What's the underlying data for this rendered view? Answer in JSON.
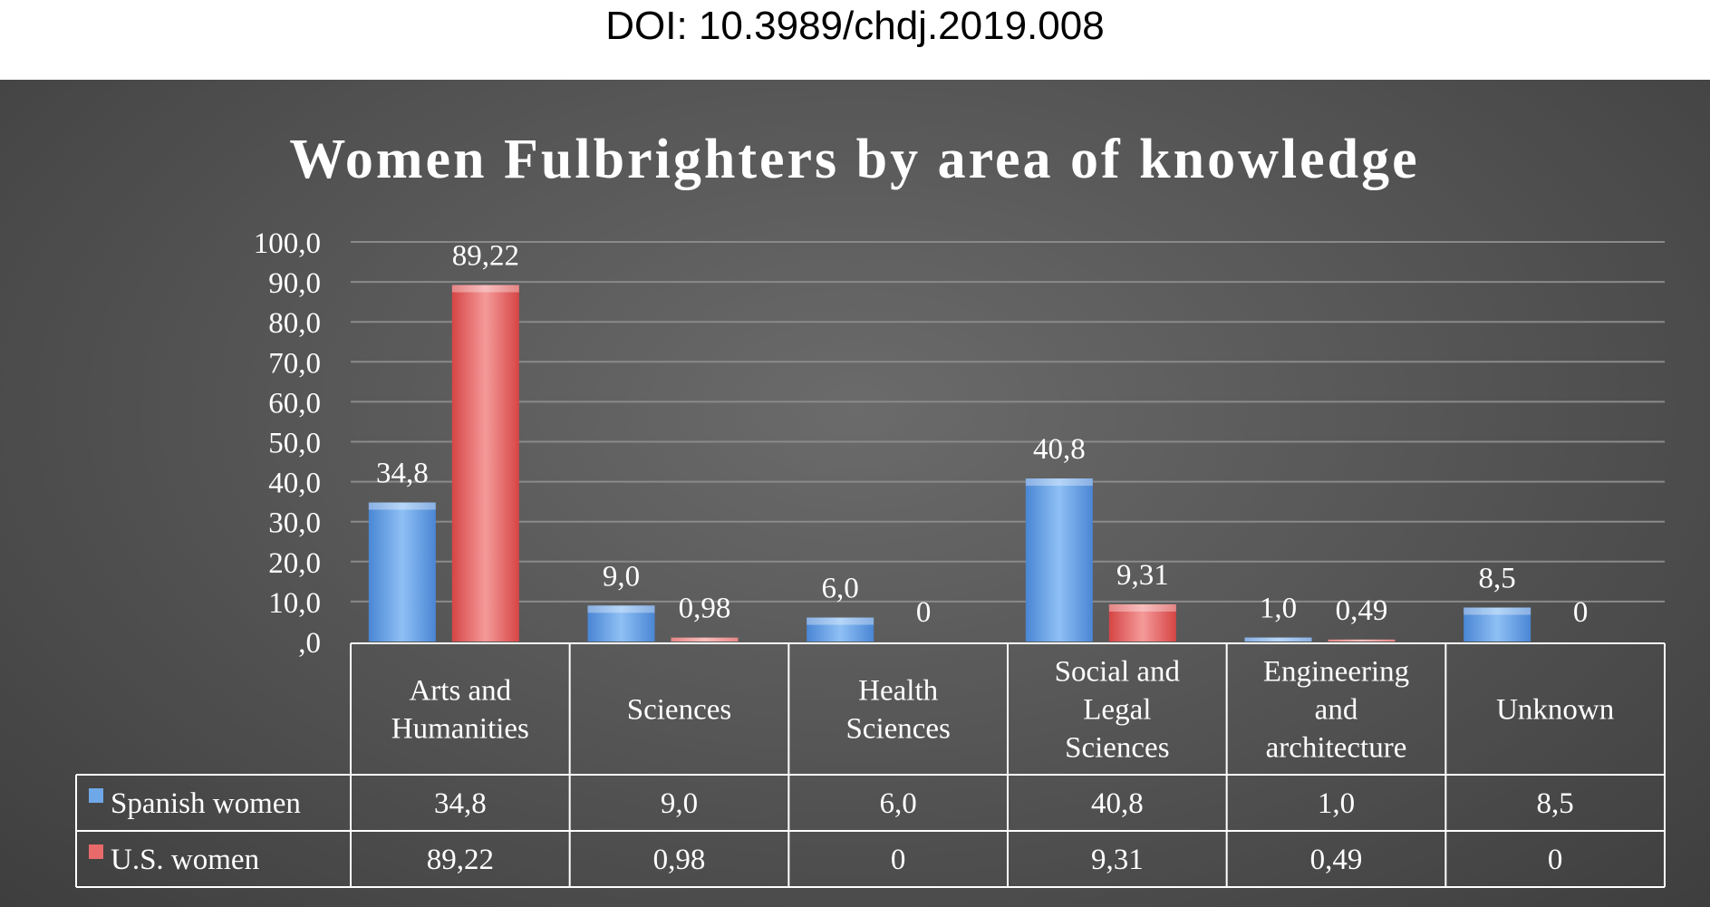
{
  "doi": "DOI: 10.3989/chdj.2019.008",
  "colors": {
    "spanish": "#6fa8e8",
    "us": "#e86a6a",
    "grid": "#8a8a8a",
    "table_line": "#ffffff"
  },
  "chart_data": {
    "type": "bar",
    "title": "Women Fulbrighters by area of knowledge",
    "categories": [
      [
        "Arts and",
        "Humanities"
      ],
      [
        "Sciences"
      ],
      [
        "Health",
        "Sciences"
      ],
      [
        "Social and",
        "Legal",
        "Sciences"
      ],
      [
        "Engineering",
        "and",
        "architecture"
      ],
      [
        "Unknown"
      ]
    ],
    "series": [
      {
        "name": "Spanish women",
        "values": [
          34.8,
          9.0,
          6.0,
          40.8,
          1.0,
          8.5
        ],
        "labels": [
          "34,8",
          "9,0",
          "6,0",
          "40,8",
          "1,0",
          "8,5"
        ]
      },
      {
        "name": "U.S. women",
        "values": [
          89.22,
          0.98,
          0,
          9.31,
          0.49,
          0
        ],
        "labels": [
          "89,22",
          "0,98",
          "0",
          "9,31",
          "0,49",
          "0"
        ]
      }
    ],
    "yticks": [
      ",0",
      "10,0",
      "20,0",
      "30,0",
      "40,0",
      "50,0",
      "60,0",
      "70,0",
      "80,0",
      "90,0",
      "100,0"
    ],
    "ylim": [
      0,
      100
    ],
    "grid": true,
    "legend": "data table below chart"
  }
}
